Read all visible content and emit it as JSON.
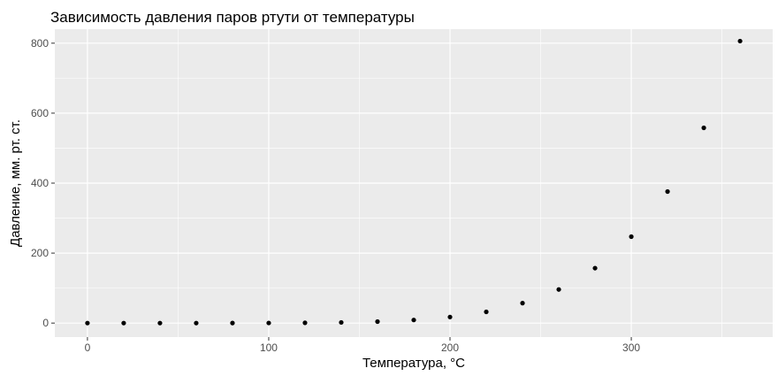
{
  "chart_data": {
    "type": "scatter",
    "title": "Зависимость давления паров ртути от температуры",
    "xlabel": "Температура, °C",
    "ylabel": "Давление, мм. рт. ст.",
    "xlim": [
      -18,
      378
    ],
    "ylim": [
      -40,
      840
    ],
    "x_ticks": [
      0,
      100,
      200,
      300
    ],
    "x_minor": [
      50,
      150,
      250,
      350
    ],
    "y_ticks": [
      0,
      200,
      400,
      600,
      800
    ],
    "y_minor": [
      100,
      300,
      500,
      700
    ],
    "x_tick_labels": [
      "0",
      "100",
      "200",
      "300"
    ],
    "y_tick_labels": [
      "0",
      "200",
      "400",
      "600",
      "800"
    ],
    "grid": true,
    "colors": {
      "panel": "#ebebeb",
      "grid": "#ffffff",
      "point": "#000000",
      "tick": "#333333"
    },
    "points": [
      {
        "x": 0,
        "y": 0.0002
      },
      {
        "x": 20,
        "y": 0.0012
      },
      {
        "x": 40,
        "y": 0.006
      },
      {
        "x": 60,
        "y": 0.03
      },
      {
        "x": 80,
        "y": 0.09
      },
      {
        "x": 100,
        "y": 0.27
      },
      {
        "x": 120,
        "y": 0.75
      },
      {
        "x": 140,
        "y": 1.85
      },
      {
        "x": 160,
        "y": 4.2
      },
      {
        "x": 180,
        "y": 8.8
      },
      {
        "x": 200,
        "y": 17.3
      },
      {
        "x": 220,
        "y": 32.1
      },
      {
        "x": 240,
        "y": 57.0
      },
      {
        "x": 260,
        "y": 96.0
      },
      {
        "x": 280,
        "y": 157.0
      },
      {
        "x": 300,
        "y": 247.0
      },
      {
        "x": 320,
        "y": 376.0
      },
      {
        "x": 340,
        "y": 558.0
      },
      {
        "x": 360,
        "y": 806.0
      }
    ]
  }
}
